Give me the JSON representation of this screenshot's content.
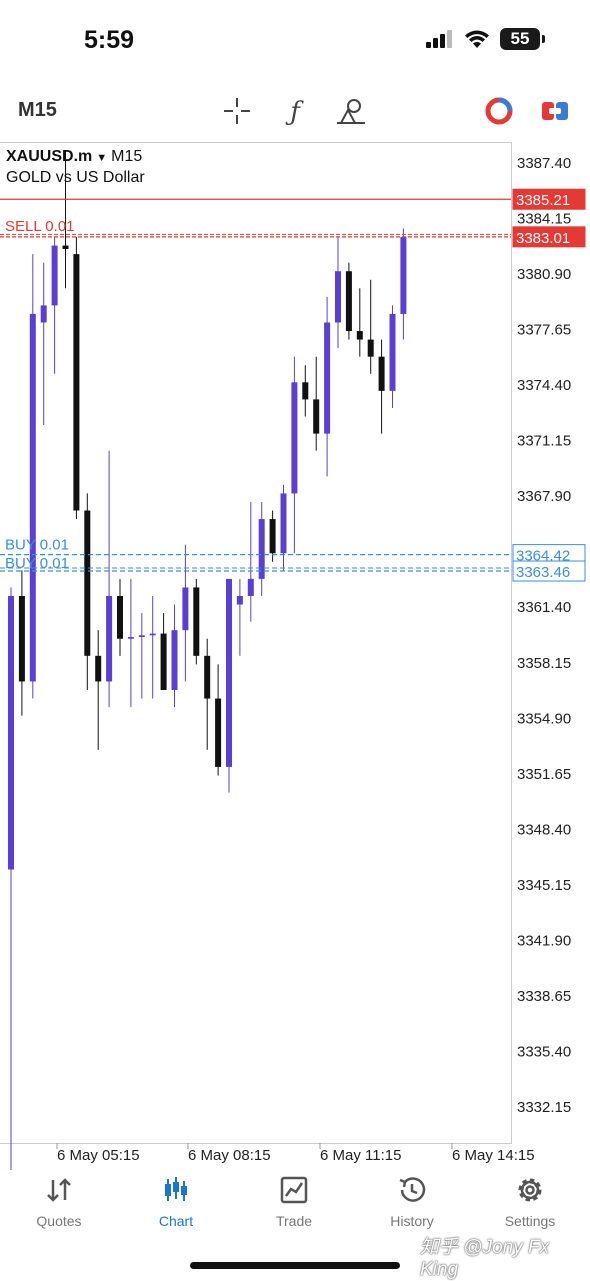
{
  "status_bar": {
    "time": "5:59",
    "battery": "55"
  },
  "toolbar": {
    "timeframe": "M15"
  },
  "symbol": {
    "name": "XAUUSD.m",
    "timeframe": "M15",
    "description": "GOLD vs US Dollar"
  },
  "price_labels": {
    "red_line": "3385.21",
    "sell_line": "3383.01",
    "buy_line_1": "3364.42",
    "buy_line_2": "3363.46"
  },
  "order_labels": {
    "sell": "SELL 0.01",
    "buy1": "BUY 0.01",
    "buy2": "BUY 0.01"
  },
  "colors": {
    "bull": "#5b3fd4",
    "bear": "#111111",
    "sell": "#e53935",
    "buy": "#3a8fd9",
    "active_tab": "#1976d2"
  },
  "chart_data": {
    "type": "candlestick",
    "ylim": [
      3330.0,
      3388.5
    ],
    "y_ticks": [
      "3387.40",
      "3384.15",
      "3380.90",
      "3377.65",
      "3374.40",
      "3371.15",
      "3367.90",
      "3361.40",
      "3358.15",
      "3354.90",
      "3351.65",
      "3348.40",
      "3345.15",
      "3341.90",
      "3338.65",
      "3335.40",
      "3332.15"
    ],
    "x_ticks": [
      "6 May 05:15",
      "6 May 08:15",
      "6 May 11:15",
      "6 May 14:15"
    ],
    "candles": [
      {
        "o": 3346.0,
        "h": 3362.5,
        "l": 3320.0,
        "c": 3362.0
      },
      {
        "o": 3362.0,
        "h": 3363.5,
        "l": 3355.0,
        "c": 3357.0
      },
      {
        "o": 3357.0,
        "h": 3382.0,
        "l": 3356.0,
        "c": 3378.5
      },
      {
        "o": 3378.0,
        "h": 3381.5,
        "l": 3372.0,
        "c": 3379.0
      },
      {
        "o": 3379.0,
        "h": 3383.0,
        "l": 3375.0,
        "c": 3382.5
      },
      {
        "o": 3382.5,
        "h": 3388.0,
        "l": 3380.0,
        "c": 3382.3
      },
      {
        "o": 3382.0,
        "h": 3383.0,
        "l": 3366.5,
        "c": 3367.0
      },
      {
        "o": 3367.0,
        "h": 3368.0,
        "l": 3356.5,
        "c": 3358.5
      },
      {
        "o": 3358.5,
        "h": 3360.0,
        "l": 3353.0,
        "c": 3357.0
      },
      {
        "o": 3357.0,
        "h": 3370.5,
        "l": 3355.5,
        "c": 3362.0
      },
      {
        "o": 3362.0,
        "h": 3363.0,
        "l": 3358.5,
        "c": 3359.5
      },
      {
        "o": 3359.5,
        "h": 3363.0,
        "l": 3355.5,
        "c": 3359.6
      },
      {
        "o": 3359.6,
        "h": 3361.0,
        "l": 3356.0,
        "c": 3359.7
      },
      {
        "o": 3359.7,
        "h": 3362.0,
        "l": 3356.0,
        "c": 3359.8
      },
      {
        "o": 3359.8,
        "h": 3361.0,
        "l": 3356.5,
        "c": 3356.5
      },
      {
        "o": 3356.5,
        "h": 3361.5,
        "l": 3355.5,
        "c": 3360.0
      },
      {
        "o": 3360.0,
        "h": 3365.0,
        "l": 3357.0,
        "c": 3362.5
      },
      {
        "o": 3362.5,
        "h": 3363.0,
        "l": 3358.0,
        "c": 3358.5
      },
      {
        "o": 3358.5,
        "h": 3359.5,
        "l": 3353.0,
        "c": 3356.0
      },
      {
        "o": 3356.0,
        "h": 3358.0,
        "l": 3351.5,
        "c": 3352.0
      },
      {
        "o": 3352.0,
        "h": 3363.0,
        "l": 3350.5,
        "c": 3363.0
      },
      {
        "o": 3361.5,
        "h": 3363.0,
        "l": 3358.5,
        "c": 3362.0
      },
      {
        "o": 3362.0,
        "h": 3367.5,
        "l": 3360.5,
        "c": 3363.0
      },
      {
        "o": 3363.0,
        "h": 3367.5,
        "l": 3362.0,
        "c": 3366.5
      },
      {
        "o": 3366.5,
        "h": 3367.0,
        "l": 3364.0,
        "c": 3364.5
      },
      {
        "o": 3364.5,
        "h": 3368.5,
        "l": 3363.5,
        "c": 3368.0
      },
      {
        "o": 3368.0,
        "h": 3376.0,
        "l": 3364.5,
        "c": 3374.5
      },
      {
        "o": 3374.5,
        "h": 3375.5,
        "l": 3372.5,
        "c": 3373.5
      },
      {
        "o": 3373.5,
        "h": 3376.0,
        "l": 3370.5,
        "c": 3371.5
      },
      {
        "o": 3371.5,
        "h": 3379.5,
        "l": 3369.0,
        "c": 3378.0
      },
      {
        "o": 3378.0,
        "h": 3383.0,
        "l": 3376.5,
        "c": 3381.0
      },
      {
        "o": 3381.0,
        "h": 3381.5,
        "l": 3377.0,
        "c": 3377.5
      },
      {
        "o": 3377.5,
        "h": 3380.0,
        "l": 3376.0,
        "c": 3377.0
      },
      {
        "o": 3377.0,
        "h": 3380.5,
        "l": 3375.0,
        "c": 3376.0
      },
      {
        "o": 3376.0,
        "h": 3377.0,
        "l": 3371.5,
        "c": 3374.0
      },
      {
        "o": 3374.0,
        "h": 3379.0,
        "l": 3373.0,
        "c": 3378.5
      },
      {
        "o": 3378.5,
        "h": 3383.5,
        "l": 3377.0,
        "c": 3383.0
      }
    ]
  },
  "tabs": [
    {
      "label": "Quotes",
      "icon": "quotes-icon"
    },
    {
      "label": "Chart",
      "icon": "chart-icon"
    },
    {
      "label": "Trade",
      "icon": "trade-icon"
    },
    {
      "label": "History",
      "icon": "history-icon"
    },
    {
      "label": "Settings",
      "icon": "settings-icon"
    }
  ],
  "watermark": "知乎 @Jony Fx King"
}
